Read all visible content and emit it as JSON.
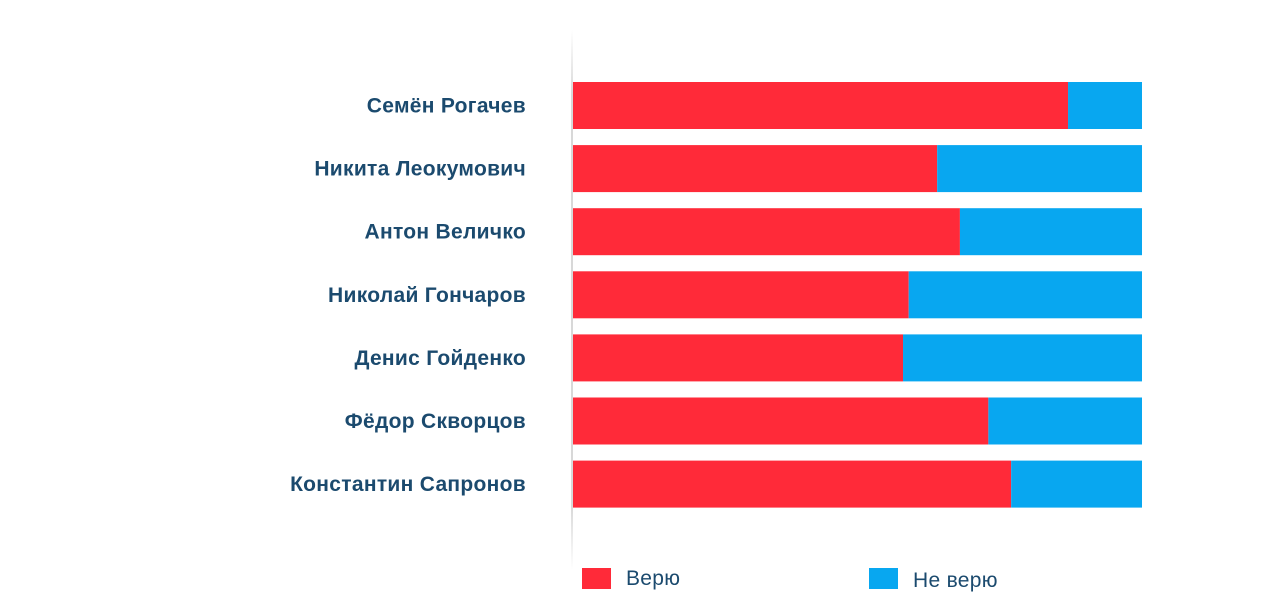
{
  "chart_data": {
    "type": "bar",
    "orientation": "horizontal",
    "stacked": true,
    "normalized": true,
    "categories": [
      "Семён Рогачев",
      "Никита Леокумович",
      "Антон Величко",
      "Николай Гончаров",
      "Денис Гойденко",
      "Фёдор Скворцов",
      "Константин Сапронов"
    ],
    "series": [
      {
        "name": "Верю",
        "color": "#ff2a39",
        "values": [
          87,
          64,
          68,
          59,
          58,
          73,
          77
        ]
      },
      {
        "name": "Не верю",
        "color": "#08a7f0",
        "values": [
          13,
          36,
          32,
          41,
          42,
          27,
          23
        ]
      }
    ],
    "xlim": [
      0,
      100
    ],
    "grid": false,
    "legend_position": "bottom",
    "label_color": "#1b4a6e"
  }
}
